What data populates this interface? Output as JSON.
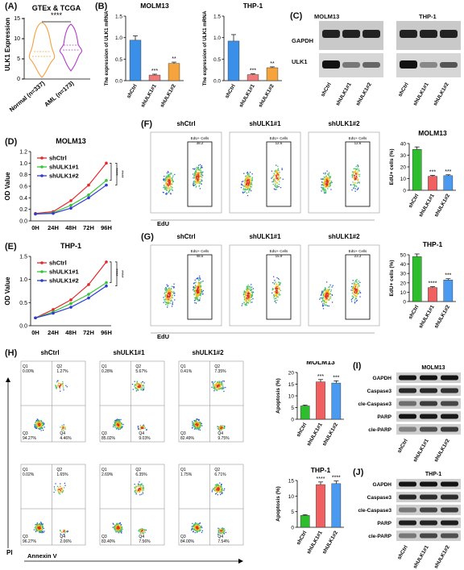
{
  "panels": {
    "A": {
      "letter": "(A)",
      "title": "GTEx & TCGA",
      "ylabel": "ULK1 Expression",
      "sig": "****",
      "groups": [
        "Normal (n=337)",
        "AML (n=173)"
      ],
      "yticks": [
        "0",
        "5",
        "10",
        "15"
      ],
      "colors": [
        "#f4a040",
        "#b03cc8"
      ]
    },
    "B": {
      "letter": "(B)",
      "charts": [
        {
          "title": "MOLM13",
          "ylabel": "The expression of ULK1 mRNA",
          "yticks": [
            "0.0",
            "0.5",
            "1.0",
            "1.5"
          ],
          "categories": [
            "shCtrl",
            "shULK1#1",
            "shULK1#2"
          ],
          "values": [
            0.94,
            0.13,
            0.4
          ],
          "errors": [
            0.1,
            0.02,
            0.03
          ],
          "sig": [
            "",
            "***",
            "**"
          ]
        },
        {
          "title": "THP-1",
          "ylabel": "The expression of ULK1 mRNA",
          "yticks": [
            "0.0",
            "0.5",
            "1.0",
            "1.5"
          ],
          "categories": [
            "shCtrl",
            "shULK1#1",
            "shULK1#2"
          ],
          "values": [
            0.92,
            0.14,
            0.3
          ],
          "errors": [
            0.15,
            0.02,
            0.02
          ],
          "sig": [
            "",
            "***",
            "**"
          ]
        }
      ]
    },
    "C": {
      "letter": "(C)",
      "rows": [
        "GAPDH",
        "ULK1"
      ],
      "groups": [
        "MOLM13",
        "THP-1"
      ],
      "lanes": [
        "shCtrl",
        "shULK1#1",
        "shULK1#2",
        "shCtrl",
        "shULK1#1",
        "shULK1#2"
      ]
    },
    "D": {
      "letter": "(D)",
      "title": "MOLM13",
      "ylabel": "OD Value",
      "xticks": [
        "0H",
        "24H",
        "48H",
        "72H",
        "96H"
      ],
      "yticks": [
        "0.0",
        "0.2",
        "0.4",
        "0.6",
        "0.8",
        "1.0",
        "1.2"
      ],
      "sig": [
        "****",
        "****"
      ]
    },
    "E": {
      "letter": "(E)",
      "title": "THP-1",
      "ylabel": "OD Value",
      "xticks": [
        "0H",
        "24H",
        "48H",
        "72H",
        "96H"
      ],
      "yticks": [
        "0.0",
        "0.5",
        "1.0",
        "1.5"
      ],
      "sig": [
        "****",
        "****"
      ]
    },
    "F": {
      "letter": "(F)",
      "titles": [
        "shCtrl",
        "shULK1#1",
        "shULK1#2"
      ],
      "gate": "EdU+ Cells",
      "gate_values": [
        "38.2",
        "12.6",
        "12.6"
      ],
      "xlabel": "EdU",
      "bar_title": "MOLM13",
      "bar_ylabel": "EdU+ cells (%)",
      "bar_yticks": [
        "0",
        "10",
        "20",
        "30",
        "40"
      ]
    },
    "G": {
      "letter": "(G)",
      "titles": [
        "shCtrl",
        "shULK1#1",
        "shULK1#2"
      ],
      "gate": "EdU+ Cells",
      "gate_values": [
        "48.5",
        "15.9",
        "23.3"
      ],
      "xlabel": "EdU",
      "bar_title": "THP-1",
      "bar_ylabel": "EdU+ cells (%)",
      "bar_yticks": [
        "0",
        "10",
        "20",
        "30",
        "40",
        "50"
      ]
    },
    "H": {
      "letter": "(H)",
      "titles": [
        "shCtrl",
        "shULK1#1",
        "shULK1#2"
      ],
      "xlabel": "Annexin V",
      "ylabel": "PI",
      "quadrants_top": [
        [
          "0.00%",
          "1.27%",
          "94.27%",
          "4.46%"
        ],
        [
          "0.28%",
          "5.67%",
          "85.02%",
          "9.03%"
        ],
        [
          "0.41%",
          "7.35%",
          "82.49%",
          "9.75%"
        ]
      ],
      "quadrants_bottom": [
        [
          "0.02%",
          "1.65%",
          "96.27%",
          "2.06%"
        ],
        [
          "2.69%",
          "6.35%",
          "83.40%",
          "7.56%"
        ],
        [
          "1.75%",
          "6.71%",
          "84.00%",
          "7.54%"
        ]
      ],
      "qlabels": [
        "Q1",
        "Q2",
        "Q3",
        "Q4"
      ],
      "bar1_title": "MOLM13",
      "bar2_title": "THP-1",
      "bar_ylabel": "Apoptosis (%)",
      "bar1_yticks": [
        "0",
        "5",
        "10",
        "15",
        "20"
      ],
      "bar2_yticks": [
        "0",
        "5",
        "10",
        "15"
      ]
    },
    "I": {
      "letter": "(I)",
      "title": "MOLM13",
      "rows": [
        "GAPDH",
        "Caspase3",
        "cle-Caspase3",
        "PARP",
        "cle-PARP"
      ],
      "lanes": [
        "shCtrl",
        "shULK1#1",
        "shULK1#2"
      ]
    },
    "J": {
      "letter": "(J)",
      "title": "THP-1",
      "rows": [
        "GAPDH",
        "Caspase3",
        "cle-Caspase3",
        "PARP",
        "cle-PARP"
      ],
      "lanes": [
        "shCtrl",
        "shULK1#1",
        "shULK1#2"
      ]
    }
  },
  "chart_data": [
    {
      "type": "bar",
      "title": "MOLM13",
      "categories": [
        "shCtrl",
        "shULK1#1",
        "shULK1#2"
      ],
      "values": [
        0.94,
        0.13,
        0.4
      ],
      "ylabel": "The expression of ULK1 mRNA",
      "ylim": [
        0,
        1.5
      ]
    },
    {
      "type": "bar",
      "title": "THP-1",
      "categories": [
        "shCtrl",
        "shULK1#1",
        "shULK1#2"
      ],
      "values": [
        0.92,
        0.14,
        0.3
      ],
      "ylabel": "The expression of ULK1 mRNA",
      "ylim": [
        0,
        1.5
      ]
    },
    {
      "type": "line",
      "title": "MOLM13",
      "ylabel": "OD Value",
      "x": [
        "0H",
        "24H",
        "48H",
        "72H",
        "96H"
      ],
      "ylim": [
        0,
        1.2
      ],
      "series": [
        {
          "name": "shCtrl",
          "values": [
            0.13,
            0.16,
            0.35,
            0.62,
            1.0
          ],
          "color": "#e8262a"
        },
        {
          "name": "shULK1#1",
          "values": [
            0.12,
            0.14,
            0.27,
            0.45,
            0.7
          ],
          "color": "#35c536"
        },
        {
          "name": "shULK1#2",
          "values": [
            0.12,
            0.13,
            0.22,
            0.4,
            0.62
          ],
          "color": "#2f3ad6"
        }
      ]
    },
    {
      "type": "line",
      "title": "THP-1",
      "ylabel": "OD Value",
      "x": [
        "0H",
        "24H",
        "48H",
        "72H",
        "96H"
      ],
      "ylim": [
        0,
        1.5
      ],
      "series": [
        {
          "name": "shCtrl",
          "values": [
            0.17,
            0.35,
            0.56,
            0.89,
            1.38
          ],
          "color": "#e8262a"
        },
        {
          "name": "shULK1#1",
          "values": [
            0.17,
            0.3,
            0.48,
            0.68,
            0.93
          ],
          "color": "#35c536"
        },
        {
          "name": "shULK1#2",
          "values": [
            0.17,
            0.27,
            0.4,
            0.6,
            0.86
          ],
          "color": "#2f3ad6"
        }
      ]
    },
    {
      "type": "bar",
      "title": "MOLM13",
      "categories": [
        "shCtrl",
        "shULK1#1",
        "shULK1#2"
      ],
      "values": [
        35,
        12,
        12.5
      ],
      "ylabel": "EdU+ cells (%)",
      "ylim": [
        0,
        40
      ],
      "sig": [
        "",
        "***",
        "***"
      ]
    },
    {
      "type": "bar",
      "title": "THP-1",
      "categories": [
        "shCtrl",
        "shULK1#1",
        "shULK1#2"
      ],
      "values": [
        48,
        15,
        23
      ],
      "ylabel": "EdU+ cells (%)",
      "ylim": [
        0,
        50
      ],
      "sig": [
        "",
        "****",
        "***"
      ]
    },
    {
      "type": "bar",
      "title": "MOLM13",
      "categories": [
        "shCtrl",
        "shULK1#1",
        "shULK1#2"
      ],
      "values": [
        5.7,
        16,
        15.5
      ],
      "ylabel": "Apoptosis (%)",
      "ylim": [
        0,
        20
      ],
      "sig": [
        "",
        "***",
        "***"
      ]
    },
    {
      "type": "bar",
      "title": "THP-1",
      "categories": [
        "shCtrl",
        "shULK1#1",
        "shULK1#2"
      ],
      "values": [
        3.8,
        13.7,
        14
      ],
      "ylabel": "Apoptosis (%)",
      "ylim": [
        0,
        15
      ],
      "sig": [
        "",
        "****",
        "****"
      ]
    }
  ],
  "colors": {
    "ctrl": "#3a8fe8",
    "kd1": "#f07a7a",
    "kd2": "#f5a33c",
    "green": "#2dbd2d",
    "red": "#f06060",
    "blue": "#4a9af0"
  }
}
